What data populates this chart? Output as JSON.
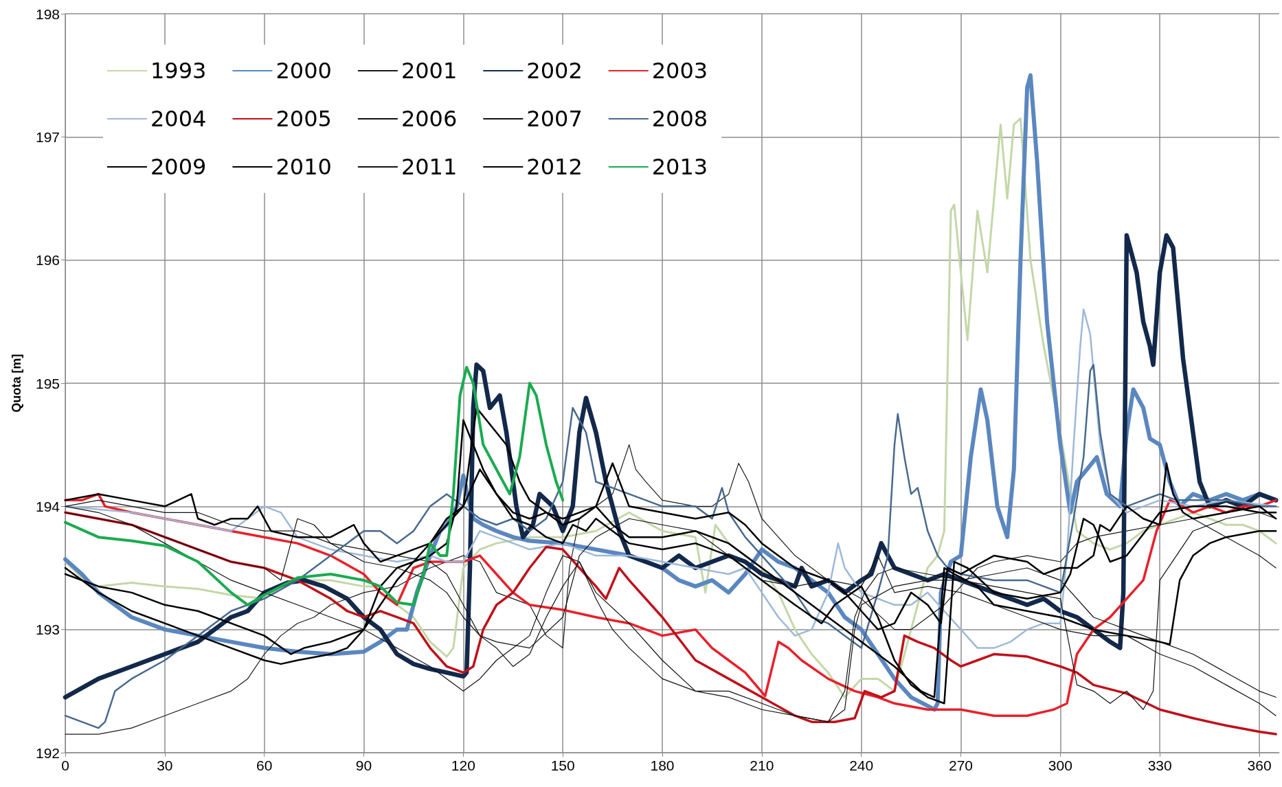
{
  "chart_data": {
    "type": "line",
    "ylabel": "Quota [m]",
    "xlim": [
      0,
      366
    ],
    "xticks": [
      0,
      30,
      60,
      90,
      120,
      150,
      180,
      210,
      240,
      270,
      300,
      330,
      360
    ],
    "ylim": [
      192,
      198
    ],
    "yticks": [
      192,
      193,
      194,
      195,
      196,
      197,
      198
    ],
    "grid": true,
    "legend": "top left",
    "marker": "none",
    "line_style": "solid",
    "series": [
      {
        "name": "1993",
        "color": "#c4d7a8",
        "x": [
          0,
          5,
          10,
          20,
          30,
          40,
          50,
          60,
          65,
          70,
          80,
          90,
          95,
          100,
          105,
          110,
          115,
          117,
          120,
          125,
          130,
          140,
          150,
          160,
          170,
          180,
          190,
          193,
          196,
          200,
          205,
          210,
          215,
          220,
          225,
          230,
          235,
          240,
          245,
          250,
          255,
          260,
          263,
          265,
          267,
          268,
          270,
          272,
          275,
          278,
          280,
          282,
          284,
          286,
          288,
          291,
          295,
          300,
          305,
          310,
          315,
          320,
          325,
          330,
          340,
          350,
          355,
          360,
          365
        ],
        "values": [
          193.55,
          193.42,
          193.35,
          193.38,
          193.35,
          193.33,
          193.28,
          193.25,
          193.35,
          193.4,
          193.4,
          193.35,
          193.35,
          193.2,
          193.1,
          192.9,
          192.78,
          192.85,
          193.5,
          193.65,
          193.7,
          193.75,
          193.75,
          193.8,
          193.95,
          193.8,
          193.75,
          193.3,
          193.85,
          193.7,
          193.6,
          193.5,
          193.3,
          193.0,
          192.8,
          192.65,
          192.45,
          192.6,
          192.6,
          192.5,
          193.0,
          193.5,
          193.6,
          193.8,
          196.4,
          196.45,
          195.9,
          195.35,
          196.4,
          195.9,
          196.5,
          197.1,
          196.5,
          197.1,
          197.15,
          196.0,
          195.3,
          194.6,
          193.8,
          193.7,
          193.65,
          193.7,
          193.8,
          193.85,
          193.95,
          193.85,
          193.85,
          193.8,
          193.7
        ]
      },
      {
        "name": "2000",
        "color": "#5b87c0",
        "x": [
          0,
          5,
          10,
          15,
          20,
          30,
          40,
          50,
          60,
          70,
          80,
          90,
          95,
          100,
          103,
          106,
          110,
          113,
          115,
          118,
          120,
          123,
          126,
          130,
          135,
          140,
          150,
          160,
          170,
          180,
          185,
          190,
          195,
          200,
          205,
          210,
          215,
          220,
          225,
          230,
          235,
          240,
          245,
          250,
          255,
          260,
          262,
          263,
          264,
          267,
          270,
          273,
          276,
          278,
          281,
          284,
          286,
          288,
          290,
          291,
          293,
          296,
          300,
          303,
          305,
          308,
          311,
          314,
          318,
          320,
          322,
          325,
          327,
          330,
          333,
          336,
          340,
          345,
          350,
          355,
          360,
          365
        ],
        "values": [
          193.57,
          193.45,
          193.3,
          193.2,
          193.1,
          193.0,
          192.95,
          192.9,
          192.85,
          192.82,
          192.8,
          192.82,
          192.9,
          193.0,
          193.0,
          193.3,
          193.6,
          193.8,
          193.85,
          194.0,
          194.25,
          193.9,
          193.85,
          193.8,
          193.75,
          193.72,
          193.7,
          193.65,
          193.6,
          193.5,
          193.4,
          193.35,
          193.4,
          193.3,
          193.45,
          193.65,
          193.55,
          193.5,
          193.4,
          193.3,
          193.1,
          193.0,
          192.8,
          192.6,
          192.45,
          192.38,
          192.35,
          192.4,
          193.3,
          193.55,
          193.6,
          194.4,
          194.95,
          194.7,
          194.0,
          193.75,
          194.3,
          196.0,
          197.4,
          197.5,
          196.8,
          195.5,
          194.5,
          193.95,
          194.2,
          194.3,
          194.4,
          194.1,
          194.0,
          194.6,
          194.95,
          194.8,
          194.55,
          194.5,
          194.2,
          194.0,
          194.1,
          194.05,
          194.1,
          194.05,
          194.1,
          194.05
        ]
      },
      {
        "name": "2001",
        "color": "#1a1a1a",
        "x": [
          0,
          10,
          20,
          30,
          40,
          50,
          55,
          60,
          65,
          70,
          75,
          80,
          90,
          100,
          110,
          120,
          125,
          130,
          135,
          140,
          145,
          150,
          152,
          155,
          160,
          165,
          170,
          172,
          175,
          180,
          190,
          195,
          200,
          203,
          206,
          210,
          220,
          230,
          240,
          250,
          255,
          260,
          265,
          270,
          275,
          280,
          290,
          300,
          305,
          310,
          320,
          330,
          340,
          350,
          360,
          365
        ],
        "values": [
          192.15,
          192.15,
          192.2,
          192.3,
          192.4,
          192.5,
          192.6,
          192.8,
          192.95,
          193.05,
          193.1,
          193.2,
          193.3,
          193.35,
          193.5,
          193.6,
          193.55,
          193.3,
          193.25,
          193.2,
          192.95,
          192.85,
          193.5,
          193.9,
          194.0,
          194.1,
          194.5,
          194.3,
          194.2,
          194.05,
          194.0,
          194.0,
          194.1,
          194.35,
          194.2,
          193.9,
          193.6,
          193.4,
          193.25,
          193.0,
          193.0,
          193.1,
          193.2,
          193.35,
          193.5,
          193.55,
          193.6,
          193.55,
          193.7,
          193.75,
          193.8,
          193.85,
          193.9,
          193.75,
          193.6,
          193.5
        ]
      },
      {
        "name": "2002",
        "color": "#13294b",
        "x": [
          0,
          10,
          20,
          30,
          40,
          50,
          55,
          60,
          67,
          72,
          78,
          85,
          90,
          95,
          100,
          105,
          110,
          115,
          120,
          121,
          122,
          123,
          124,
          126,
          128,
          131,
          133,
          136,
          138,
          141,
          143,
          147,
          150,
          153,
          155,
          157,
          160,
          163,
          167,
          170,
          175,
          180,
          185,
          190,
          195,
          200,
          205,
          210,
          215,
          220,
          222,
          225,
          230,
          235,
          240,
          243,
          246,
          250,
          255,
          260,
          265,
          270,
          275,
          280,
          285,
          290,
          295,
          300,
          305,
          310,
          315,
          318,
          319,
          320,
          323,
          325,
          327,
          328,
          330,
          332,
          334,
          337,
          340,
          342,
          345,
          350,
          355,
          360,
          365
        ],
        "values": [
          192.45,
          192.6,
          192.7,
          192.8,
          192.9,
          193.1,
          193.15,
          193.3,
          193.38,
          193.4,
          193.35,
          193.25,
          193.1,
          193.0,
          192.8,
          192.72,
          192.68,
          192.65,
          192.62,
          192.65,
          193.5,
          194.8,
          195.15,
          195.1,
          194.8,
          194.9,
          194.6,
          194.0,
          193.75,
          193.85,
          194.1,
          194.0,
          193.8,
          194.0,
          194.6,
          194.88,
          194.6,
          194.2,
          193.8,
          193.6,
          193.55,
          193.5,
          193.6,
          193.5,
          193.55,
          193.6,
          193.55,
          193.45,
          193.4,
          193.35,
          193.5,
          193.35,
          193.4,
          193.3,
          193.4,
          193.45,
          193.7,
          193.5,
          193.45,
          193.4,
          193.45,
          193.4,
          193.35,
          193.3,
          193.25,
          193.2,
          193.25,
          193.15,
          193.1,
          193.0,
          192.9,
          192.85,
          193.3,
          196.2,
          195.9,
          195.5,
          195.3,
          195.15,
          195.9,
          196.2,
          196.1,
          195.2,
          194.6,
          194.2,
          194.0,
          194.05,
          194.0,
          194.1,
          194.05
        ]
      },
      {
        "name": "2003",
        "color": "#e8202a",
        "x": [
          0,
          5,
          10,
          12,
          20,
          30,
          40,
          50,
          60,
          70,
          80,
          90,
          95,
          100,
          105,
          110,
          115,
          120,
          125,
          130,
          135,
          140,
          150,
          160,
          170,
          180,
          190,
          195,
          200,
          205,
          211,
          215,
          218,
          222,
          230,
          238,
          245,
          250,
          260,
          270,
          280,
          290,
          298,
          302,
          305,
          310,
          315,
          320,
          325,
          329,
          333,
          337,
          340,
          345,
          350,
          355,
          360,
          365
        ],
        "values": [
          194.05,
          194.05,
          194.1,
          194.0,
          193.95,
          193.9,
          193.85,
          193.8,
          193.75,
          193.7,
          193.6,
          193.45,
          193.3,
          193.2,
          193.5,
          193.55,
          193.55,
          193.55,
          193.6,
          193.45,
          193.3,
          193.2,
          193.16,
          193.1,
          193.05,
          192.95,
          193.0,
          192.85,
          192.75,
          192.65,
          192.46,
          192.9,
          192.85,
          192.75,
          192.6,
          192.5,
          192.45,
          192.4,
          192.35,
          192.35,
          192.3,
          192.3,
          192.35,
          192.4,
          192.8,
          193.0,
          193.1,
          193.25,
          193.4,
          193.8,
          194.05,
          194.0,
          193.95,
          194.0,
          193.95,
          194.0,
          194.0,
          194.05
        ]
      },
      {
        "name": "2004",
        "color": "#9db8d8",
        "x": [
          0,
          20,
          30,
          40,
          50,
          55,
          60,
          65,
          70,
          80,
          90,
          100,
          110,
          115,
          120,
          125,
          130,
          140,
          150,
          160,
          170,
          180,
          190,
          200,
          205,
          210,
          215,
          220,
          225,
          230,
          233,
          235,
          240,
          250,
          255,
          260,
          265,
          270,
          275,
          280,
          285,
          290,
          295,
          300,
          302,
          304,
          306,
          307,
          309,
          312,
          315,
          320,
          330,
          340,
          350,
          365
        ],
        "values": [
          194.0,
          193.95,
          193.9,
          193.85,
          193.8,
          193.9,
          194.0,
          193.95,
          193.75,
          193.65,
          193.6,
          193.55,
          193.6,
          193.55,
          193.55,
          193.8,
          193.75,
          193.65,
          193.7,
          193.6,
          193.6,
          193.55,
          193.5,
          193.45,
          193.5,
          193.3,
          193.1,
          192.95,
          193.0,
          193.3,
          193.7,
          193.5,
          193.3,
          193.2,
          193.2,
          193.3,
          193.15,
          193.0,
          192.85,
          192.85,
          192.9,
          193.0,
          193.05,
          193.05,
          193.6,
          194.5,
          195.3,
          195.6,
          195.4,
          194.5,
          194.1,
          193.95,
          194.05,
          194.0,
          194.05,
          194.0
        ]
      },
      {
        "name": "2005",
        "color": "#c0101a",
        "x": [
          0,
          10,
          20,
          30,
          40,
          50,
          60,
          70,
          80,
          85,
          90,
          95,
          100,
          105,
          110,
          115,
          120,
          123,
          126,
          130,
          135,
          140,
          145,
          150,
          155,
          160,
          163,
          167,
          170,
          180,
          190,
          200,
          210,
          220,
          225,
          232,
          238,
          241,
          246,
          250,
          253,
          257,
          262,
          267,
          270,
          275,
          280,
          290,
          300,
          305,
          310,
          320,
          330,
          340,
          350,
          360,
          365
        ],
        "values": [
          193.95,
          193.9,
          193.85,
          193.75,
          193.65,
          193.55,
          193.5,
          193.4,
          193.25,
          193.15,
          193.1,
          193.15,
          193.1,
          193.05,
          192.85,
          192.7,
          192.65,
          192.7,
          193.0,
          193.2,
          193.3,
          193.5,
          193.67,
          193.65,
          193.5,
          193.35,
          193.25,
          193.5,
          193.4,
          193.1,
          192.75,
          192.6,
          192.45,
          192.3,
          192.25,
          192.25,
          192.28,
          192.5,
          192.45,
          192.5,
          192.95,
          192.9,
          192.85,
          192.75,
          192.7,
          192.75,
          192.8,
          192.78,
          192.7,
          192.65,
          192.55,
          192.48,
          192.35,
          192.28,
          192.22,
          192.17,
          192.15
        ]
      },
      {
        "name": "2006",
        "color": "#111111",
        "x": [
          0,
          10,
          20,
          30,
          40,
          50,
          60,
          70,
          80,
          90,
          100,
          110,
          115,
          120,
          125,
          130,
          140,
          150,
          155,
          160,
          170,
          180,
          190,
          200,
          205,
          210,
          220,
          230,
          240,
          245,
          250,
          260,
          270,
          280,
          290,
          300,
          310,
          320,
          330,
          340,
          350,
          360,
          365
        ],
        "values": [
          194.0,
          194.05,
          194.0,
          193.95,
          193.95,
          193.85,
          193.8,
          193.8,
          193.7,
          193.65,
          193.6,
          193.55,
          193.45,
          193.2,
          192.95,
          192.9,
          192.85,
          193.1,
          193.6,
          193.75,
          193.9,
          193.85,
          193.8,
          193.6,
          193.5,
          193.4,
          193.35,
          193.4,
          193.35,
          193.6,
          193.3,
          193.35,
          193.3,
          193.2,
          193.1,
          193.0,
          192.95,
          192.95,
          192.8,
          192.7,
          192.55,
          192.4,
          192.3
        ]
      },
      {
        "name": "2007",
        "color": "#111111",
        "x": [
          0,
          10,
          20,
          30,
          40,
          50,
          60,
          65,
          70,
          75,
          80,
          90,
          100,
          110,
          115,
          120,
          125,
          130,
          135,
          140,
          145,
          150,
          155,
          160,
          165,
          170,
          180,
          190,
          200,
          210,
          220,
          230,
          235,
          238,
          241,
          245,
          250,
          260,
          270,
          280,
          290,
          300,
          310,
          315,
          320,
          330,
          340,
          350,
          360,
          365
        ],
        "values": [
          193.95,
          193.9,
          193.85,
          193.75,
          193.65,
          193.55,
          193.5,
          193.4,
          193.9,
          193.85,
          193.7,
          193.55,
          193.5,
          193.4,
          193.3,
          193.1,
          192.95,
          192.85,
          192.7,
          192.8,
          193.1,
          193.35,
          193.55,
          193.25,
          193.0,
          192.85,
          192.6,
          192.5,
          192.5,
          192.4,
          192.3,
          192.25,
          192.5,
          193.1,
          193.3,
          193.45,
          193.5,
          193.45,
          193.4,
          193.45,
          193.5,
          193.4,
          193.1,
          193.05,
          193.0,
          192.9,
          192.8,
          192.65,
          192.5,
          192.45
        ]
      },
      {
        "name": "2008",
        "color": "#47698f",
        "x": [
          0,
          5,
          10,
          12,
          15,
          20,
          30,
          40,
          50,
          60,
          70,
          80,
          90,
          95,
          100,
          105,
          110,
          115,
          120,
          125,
          130,
          135,
          140,
          145,
          150,
          153,
          157,
          160,
          170,
          180,
          190,
          195,
          198,
          200,
          205,
          210,
          215,
          220,
          225,
          230,
          235,
          240,
          245,
          248,
          250,
          251,
          253,
          255,
          257,
          260,
          263,
          266,
          270,
          280,
          290,
          295,
          300,
          304,
          307,
          309,
          310,
          312,
          315,
          320,
          325,
          330,
          335,
          340,
          350,
          360,
          365
        ],
        "values": [
          192.3,
          192.25,
          192.2,
          192.25,
          192.5,
          192.6,
          192.75,
          192.95,
          193.15,
          193.25,
          193.4,
          193.6,
          193.8,
          193.8,
          193.7,
          193.8,
          194.0,
          194.1,
          194.0,
          193.9,
          193.85,
          193.9,
          193.8,
          193.9,
          194.2,
          194.8,
          194.6,
          194.2,
          194.1,
          194.0,
          194.0,
          193.9,
          194.15,
          193.95,
          193.75,
          193.6,
          193.45,
          193.3,
          193.1,
          193.05,
          192.95,
          192.85,
          193.3,
          193.6,
          194.5,
          194.75,
          194.4,
          194.1,
          194.15,
          193.8,
          193.6,
          193.5,
          193.45,
          193.4,
          193.4,
          193.35,
          193.3,
          193.9,
          194.4,
          195.1,
          195.15,
          194.6,
          194.1,
          194.0,
          194.05,
          194.1,
          194.05,
          194.05,
          194.05,
          194.0,
          194.0
        ]
      },
      {
        "name": "2009",
        "color": "#000000",
        "x": [
          0,
          10,
          20,
          30,
          40,
          50,
          60,
          65,
          70,
          80,
          85,
          90,
          95,
          100,
          105,
          110,
          115,
          118,
          120,
          123,
          126,
          130,
          135,
          140,
          145,
          150,
          155,
          160,
          165,
          170,
          180,
          190,
          200,
          210,
          220,
          230,
          240,
          250,
          258,
          262,
          265,
          268,
          275,
          280,
          290,
          300,
          310,
          320,
          330,
          333,
          336,
          340,
          345,
          350,
          360,
          365
        ],
        "values": [
          193.5,
          193.3,
          193.15,
          193.05,
          192.95,
          192.85,
          192.75,
          192.72,
          192.75,
          192.8,
          192.85,
          193.0,
          193.35,
          193.5,
          193.55,
          193.6,
          193.7,
          194.0,
          194.7,
          194.5,
          194.3,
          194.1,
          193.95,
          193.9,
          193.95,
          193.85,
          193.9,
          194.0,
          193.85,
          193.75,
          193.75,
          193.8,
          193.7,
          193.5,
          193.3,
          193.1,
          192.9,
          192.7,
          192.5,
          192.45,
          193.5,
          193.45,
          193.35,
          193.2,
          193.15,
          193.1,
          193.0,
          192.95,
          192.9,
          192.88,
          193.4,
          193.6,
          193.7,
          193.75,
          193.8,
          193.8
        ]
      },
      {
        "name": "2010",
        "color": "#000000",
        "x": [
          0,
          10,
          20,
          30,
          38,
          40,
          45,
          50,
          55,
          58,
          62,
          70,
          80,
          87,
          90,
          95,
          100,
          110,
          120,
          124,
          130,
          133,
          137,
          140,
          145,
          150,
          155,
          160,
          165,
          170,
          180,
          190,
          200,
          205,
          210,
          220,
          225,
          230,
          235,
          240,
          245,
          250,
          255,
          260,
          264,
          266,
          270,
          280,
          290,
          295,
          300,
          305,
          310,
          312,
          315,
          320,
          325,
          330,
          332,
          334,
          337,
          340,
          350,
          360,
          365
        ],
        "values": [
          194.05,
          194.1,
          194.05,
          194.0,
          194.1,
          193.9,
          193.85,
          193.9,
          193.9,
          194.0,
          193.8,
          193.75,
          193.75,
          193.85,
          193.7,
          193.55,
          193.6,
          193.7,
          194.0,
          194.8,
          194.6,
          194.5,
          194.2,
          194.05,
          193.95,
          193.9,
          193.95,
          194.0,
          194.35,
          194.0,
          193.95,
          193.9,
          193.95,
          193.85,
          193.7,
          193.5,
          193.45,
          193.4,
          193.3,
          193.15,
          193.0,
          193.05,
          193.3,
          193.2,
          193.05,
          193.5,
          193.45,
          193.6,
          193.55,
          193.45,
          193.5,
          193.5,
          193.6,
          193.85,
          193.8,
          194.0,
          193.9,
          193.85,
          194.35,
          194.1,
          193.95,
          193.9,
          193.95,
          194.0,
          193.9
        ]
      },
      {
        "name": "2011",
        "color": "#111111",
        "x": [
          0,
          10,
          20,
          30,
          40,
          50,
          60,
          70,
          80,
          90,
          100,
          110,
          115,
          120,
          125,
          130,
          140,
          145,
          150,
          155,
          160,
          170,
          180,
          190,
          200,
          210,
          220,
          230,
          235,
          238,
          240,
          250,
          260,
          270,
          280,
          290,
          300,
          305,
          310,
          315,
          320,
          325,
          328,
          330,
          335,
          340,
          350,
          360,
          365
        ],
        "values": [
          194.0,
          193.95,
          193.85,
          193.7,
          193.55,
          193.4,
          193.3,
          193.2,
          193.1,
          193.0,
          192.85,
          192.7,
          192.6,
          192.5,
          192.6,
          192.75,
          192.95,
          193.3,
          193.6,
          193.55,
          193.3,
          193.05,
          192.75,
          192.5,
          192.45,
          192.35,
          192.3,
          192.25,
          192.35,
          193.0,
          193.2,
          193.35,
          193.4,
          193.4,
          193.35,
          193.3,
          193.25,
          192.55,
          192.5,
          192.4,
          192.5,
          192.35,
          192.5,
          193.4,
          193.6,
          193.8,
          193.9,
          193.95,
          193.9
        ]
      },
      {
        "name": "2012",
        "color": "#000000",
        "x": [
          0,
          10,
          20,
          30,
          40,
          50,
          60,
          68,
          72,
          80,
          90,
          100,
          105,
          110,
          115,
          120,
          125,
          130,
          135,
          140,
          145,
          150,
          153,
          157,
          160,
          170,
          180,
          190,
          200,
          210,
          220,
          228,
          232,
          240,
          245,
          250,
          255,
          260,
          265,
          268,
          272,
          280,
          290,
          300,
          303,
          307,
          310,
          315,
          320,
          330,
          340,
          350,
          360,
          365
        ],
        "values": [
          193.45,
          193.35,
          193.3,
          193.2,
          193.15,
          193.05,
          192.95,
          192.8,
          192.85,
          192.9,
          193.0,
          193.4,
          193.55,
          193.7,
          193.9,
          194.0,
          194.3,
          194.1,
          193.9,
          193.85,
          193.75,
          193.7,
          193.85,
          193.8,
          193.9,
          193.7,
          193.65,
          193.7,
          193.6,
          193.4,
          193.2,
          193.05,
          193.2,
          193.35,
          193.1,
          192.75,
          192.55,
          192.45,
          192.4,
          193.55,
          193.5,
          193.3,
          193.25,
          193.3,
          193.45,
          193.9,
          193.85,
          193.55,
          193.6,
          193.95,
          194.0,
          194.0,
          193.95,
          193.95
        ]
      },
      {
        "name": "2013",
        "color": "#1aab50",
        "x": [
          0,
          10,
          20,
          30,
          40,
          50,
          55,
          60,
          65,
          70,
          80,
          90,
          95,
          100,
          105,
          108,
          110,
          113,
          115,
          117,
          119,
          121,
          123,
          126,
          130,
          134,
          137,
          140,
          142,
          145,
          148,
          150
        ],
        "values": [
          193.87,
          193.75,
          193.72,
          193.68,
          193.55,
          193.3,
          193.2,
          193.28,
          193.35,
          193.42,
          193.45,
          193.4,
          193.35,
          193.22,
          193.2,
          193.45,
          193.7,
          193.6,
          193.6,
          194.1,
          194.9,
          195.13,
          195.0,
          194.5,
          194.3,
          194.1,
          194.4,
          195.0,
          194.9,
          194.5,
          194.2,
          194.05
        ]
      }
    ]
  }
}
